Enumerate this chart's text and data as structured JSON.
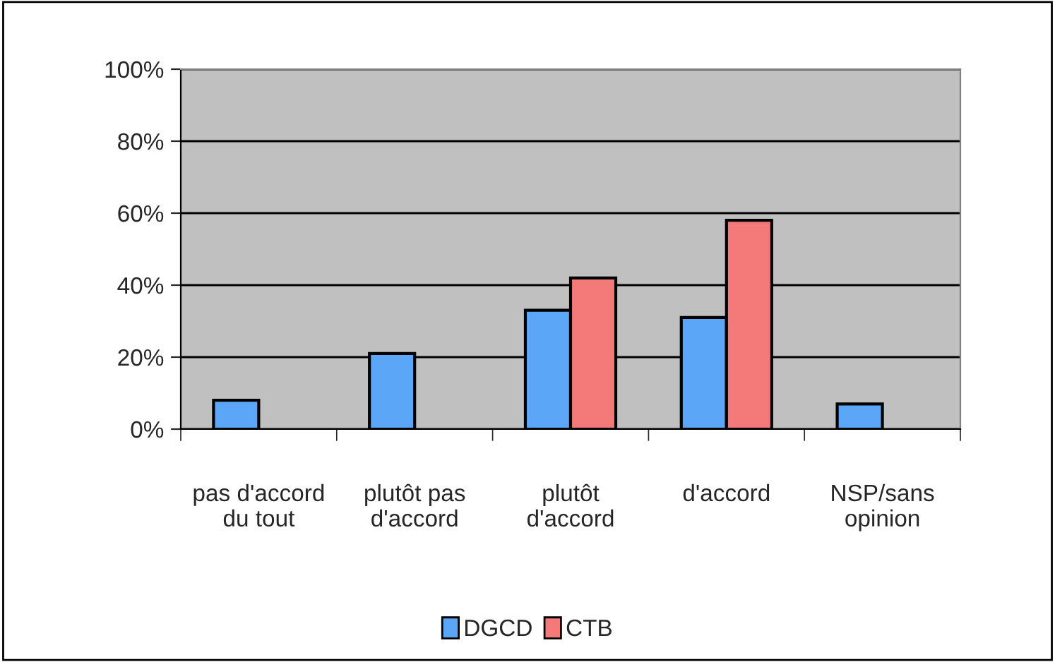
{
  "chart_data": {
    "type": "bar",
    "categories": [
      "pas d'accord\ndu tout",
      "plutôt pas\nd'accord",
      "plutôt\nd'accord",
      "d'accord",
      "NSP/sans\nopinion"
    ],
    "series": [
      {
        "name": "DGCD",
        "color": "#5ba6f7",
        "values": [
          8,
          21,
          33,
          31,
          7
        ]
      },
      {
        "name": "CTB",
        "color": "#f47a7a",
        "values": [
          null,
          null,
          42,
          58,
          null
        ]
      }
    ],
    "ylim": [
      0,
      100
    ],
    "yticks": [
      {
        "value": 0,
        "label": "0%"
      },
      {
        "value": 20,
        "label": "20%"
      },
      {
        "value": 40,
        "label": "40%"
      },
      {
        "value": 60,
        "label": "60%"
      },
      {
        "value": 80,
        "label": "80%"
      },
      {
        "value": 100,
        "label": "100%"
      }
    ],
    "grid": "y",
    "legend": "bottom"
  }
}
